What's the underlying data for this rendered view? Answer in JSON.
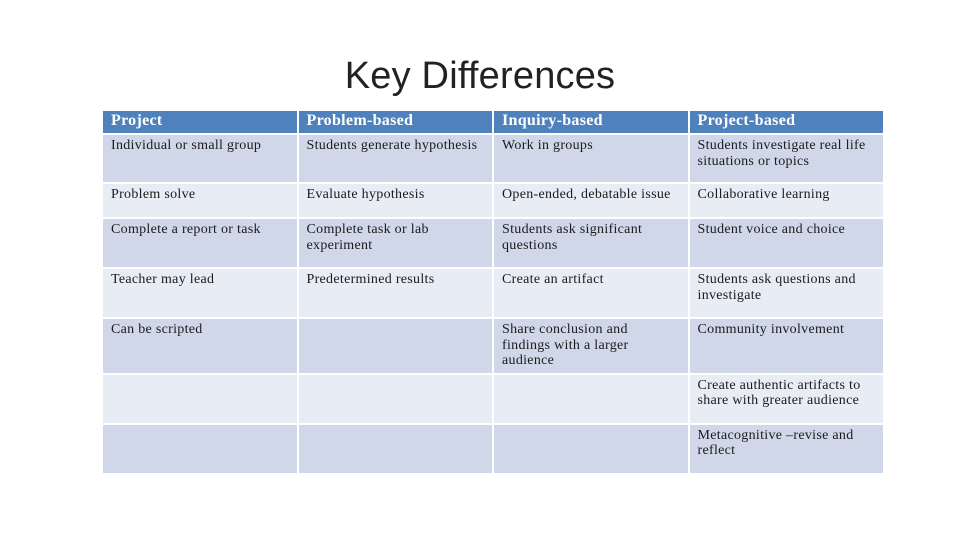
{
  "slide": {
    "title": "Key Differences"
  },
  "table": {
    "headers": [
      "Project",
      "Problem-based",
      "Inquiry-based",
      "Project-based"
    ],
    "rows": [
      [
        "Individual or small group",
        "Students generate hypothesis",
        "Work in groups",
        "Students investigate real life situations or topics"
      ],
      [
        "Problem solve",
        "Evaluate hypothesis",
        "Open-ended, debatable issue",
        "Collaborative learning"
      ],
      [
        "Complete a report or task",
        "Complete task or lab experiment",
        "Students ask significant questions",
        "Student voice and choice"
      ],
      [
        "Teacher may lead",
        "Predetermined results",
        "Create an artifact",
        "Students ask questions and investigate"
      ],
      [
        "Can be scripted",
        "",
        "Share conclusion and findings with a larger audience",
        "Community involvement"
      ],
      [
        "",
        "",
        "",
        "Create authentic artifacts to share with greater audience"
      ],
      [
        "",
        "",
        "",
        "Metacognitive –revise and reflect"
      ]
    ]
  }
}
